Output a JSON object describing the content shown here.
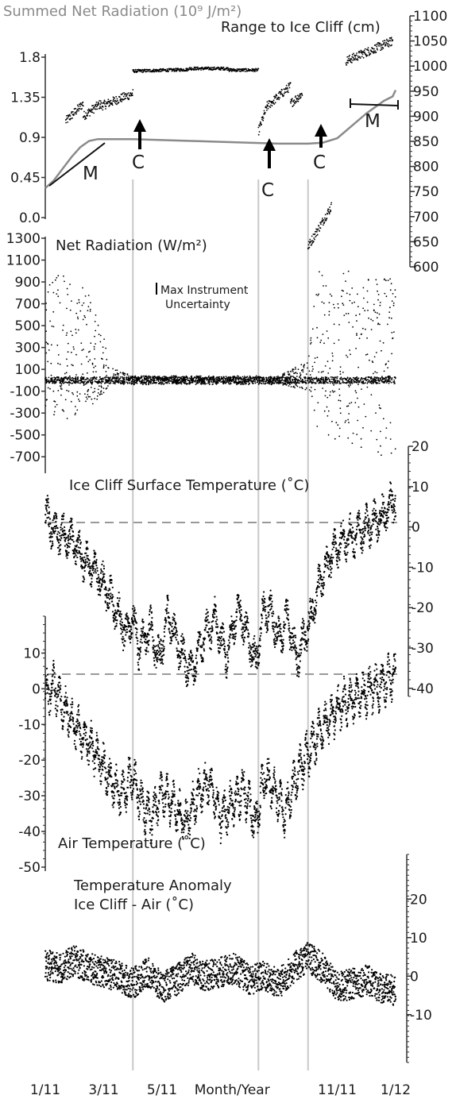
{
  "chart_data": [
    {
      "type": "line",
      "title": "Summed Net Radiation (10⁹ J/m²)",
      "series_color": "#8a8a8a",
      "y_ticks": [
        "1.8",
        "1.35",
        "0.9",
        "0.45",
        "0.0"
      ],
      "ylim": [
        0,
        1.8
      ],
      "series": [
        {
          "values": [
            [
              0.0,
              0.33
            ],
            [
              0.3,
              0.42
            ],
            [
              0.6,
              0.55
            ],
            [
              0.9,
              0.68
            ],
            [
              1.2,
              0.79
            ],
            [
              1.5,
              0.86
            ],
            [
              1.8,
              0.88
            ],
            [
              3,
              0.88
            ],
            [
              4,
              0.87
            ],
            [
              5,
              0.86
            ],
            [
              6,
              0.85
            ],
            [
              7,
              0.84
            ],
            [
              8,
              0.83
            ],
            [
              9,
              0.83
            ],
            [
              9.5,
              0.84
            ],
            [
              10,
              0.89
            ],
            [
              10.5,
              1.03
            ],
            [
              11,
              1.17
            ],
            [
              11.3,
              1.24
            ],
            [
              11.6,
              1.31
            ],
            [
              11.9,
              1.36
            ],
            [
              12.0,
              1.43
            ]
          ]
        }
      ],
      "annotations": [
        {
          "text": "M",
          "position": "lower-left"
        },
        {
          "text": "C",
          "x": 3.0
        },
        {
          "text": "C",
          "x": 7.3
        },
        {
          "text": "C",
          "x": 9.0
        },
        {
          "text": "M",
          "position": "upper-right"
        }
      ]
    },
    {
      "type": "scatter",
      "title": "Range to Ice Cliff (cm)",
      "y_ticks": [
        "1100",
        "1050",
        "1000",
        "950",
        "900",
        "850",
        "800",
        "750",
        "700",
        "650",
        "600"
      ],
      "ylim": [
        600,
        1100
      ],
      "segments": [
        {
          "x": [
            0.7,
            1.3
          ],
          "y": [
            890,
            925
          ]
        },
        {
          "x": [
            1.3,
            1.9
          ],
          "y": [
            900,
            925
          ]
        },
        {
          "x": [
            1.9,
            3.0
          ],
          "y": [
            920,
            945
          ]
        },
        {
          "x": [
            3.0,
            4.9
          ],
          "y": [
            990,
            993
          ]
        },
        {
          "x": [
            4.9,
            6.3
          ],
          "y": [
            995,
            995
          ]
        },
        {
          "x": [
            6.3,
            7.3
          ],
          "y": [
            992,
            992
          ]
        },
        {
          "x": [
            7.3,
            7.6
          ],
          "y": [
            870,
            920
          ]
        },
        {
          "x": [
            7.6,
            8.4
          ],
          "y": [
            920,
            960
          ]
        },
        {
          "x": [
            8.4,
            8.8
          ],
          "y": [
            925,
            945
          ]
        },
        {
          "x": [
            9.0,
            9.8
          ],
          "y": [
            640,
            720
          ]
        },
        {
          "x": [
            10.3,
            11.9
          ],
          "y": [
            1010,
            1050
          ]
        }
      ]
    },
    {
      "type": "scatter",
      "title": "Net Radiation (W/m²)",
      "annotation": "Max Instrument Uncertainty",
      "y_ticks": [
        "1300",
        "1100",
        "900",
        "700",
        "500",
        "300",
        "100",
        "-100",
        "-300",
        "-500",
        "-700"
      ],
      "ylim": [
        -800,
        1300
      ],
      "envelope": [
        [
          0,
          950,
          -350
        ],
        [
          0.5,
          1000,
          -380
        ],
        [
          1,
          950,
          -320
        ],
        [
          1.5,
          800,
          -250
        ],
        [
          2,
          400,
          -120
        ],
        [
          2.2,
          120,
          -40
        ],
        [
          3,
          40,
          -40
        ],
        [
          8,
          40,
          -40
        ],
        [
          9,
          180,
          -90
        ],
        [
          9.3,
          1000,
          -450
        ],
        [
          10,
          1000,
          -550
        ],
        [
          10.6,
          1000,
          -600
        ],
        [
          11,
          950,
          -650
        ],
        [
          12,
          950,
          -780
        ]
      ]
    },
    {
      "type": "line",
      "title": "Ice Cliff Surface Temperature (˚C)",
      "y_ticks": [
        "20",
        "10",
        "0",
        "-10",
        "-20",
        "-30",
        "-40"
      ],
      "ylim": [
        -42,
        20
      ],
      "zero_line": 0,
      "values": [
        [
          0,
          3
        ],
        [
          0.3,
          -1
        ],
        [
          0.6,
          -2
        ],
        [
          1,
          -4
        ],
        [
          1.3,
          -8
        ],
        [
          1.6,
          -10
        ],
        [
          2,
          -14
        ],
        [
          2.4,
          -20
        ],
        [
          2.8,
          -27
        ],
        [
          3,
          -22
        ],
        [
          3.2,
          -30
        ],
        [
          3.6,
          -25
        ],
        [
          3.9,
          -33
        ],
        [
          4.2,
          -22
        ],
        [
          4.6,
          -30
        ],
        [
          5,
          -36
        ],
        [
          5.4,
          -28
        ],
        [
          5.8,
          -23
        ],
        [
          6.2,
          -32
        ],
        [
          6.6,
          -20
        ],
        [
          7,
          -28
        ],
        [
          7.2,
          -34
        ],
        [
          7.5,
          -20
        ],
        [
          7.8,
          -22
        ],
        [
          8,
          -28
        ],
        [
          8.3,
          -22
        ],
        [
          8.6,
          -33
        ],
        [
          9,
          -25
        ],
        [
          9.4,
          -14
        ],
        [
          9.8,
          -7
        ],
        [
          10.2,
          -3
        ],
        [
          10.6,
          -2
        ],
        [
          11,
          0
        ],
        [
          11.5,
          2
        ],
        [
          12,
          7
        ]
      ]
    },
    {
      "type": "line",
      "title": "Air Temperature (˚C)",
      "y_ticks": [
        "10",
        "0",
        "-10",
        "-20",
        "-30",
        "-40",
        "-50"
      ],
      "ylim": [
        -50,
        15
      ],
      "zero_line": 0,
      "values": [
        [
          0,
          -2
        ],
        [
          0.3,
          1
        ],
        [
          0.6,
          -5
        ],
        [
          1,
          -10
        ],
        [
          1.4,
          -14
        ],
        [
          1.8,
          -19
        ],
        [
          2.2,
          -25
        ],
        [
          2.6,
          -30
        ],
        [
          3,
          -24
        ],
        [
          3.3,
          -32
        ],
        [
          3.6,
          -37
        ],
        [
          4,
          -28
        ],
        [
          4.4,
          -33
        ],
        [
          4.8,
          -38
        ],
        [
          5.2,
          -30
        ],
        [
          5.6,
          -26
        ],
        [
          6,
          -36
        ],
        [
          6.4,
          -32
        ],
        [
          6.8,
          -28
        ],
        [
          7.2,
          -38
        ],
        [
          7.5,
          -25
        ],
        [
          7.9,
          -29
        ],
        [
          8.2,
          -35
        ],
        [
          8.6,
          -25
        ],
        [
          9,
          -18
        ],
        [
          9.4,
          -12
        ],
        [
          9.8,
          -8
        ],
        [
          10.2,
          -4
        ],
        [
          10.6,
          -3
        ],
        [
          11,
          -1
        ],
        [
          11.5,
          1
        ],
        [
          12,
          4
        ]
      ]
    },
    {
      "type": "scatter",
      "title": "Temperature Anomaly Ice Cliff - Air (˚C)",
      "title_lines": [
        "Temperature Anomaly",
        "Ice Cliff - Air (˚C)"
      ],
      "y_ticks": [
        "20",
        "10",
        "0",
        "-10"
      ],
      "ylim": [
        -15,
        25
      ],
      "zero_line": 0,
      "values": [
        [
          0,
          3
        ],
        [
          0.5,
          2
        ],
        [
          1,
          4
        ],
        [
          1.5,
          2
        ],
        [
          2,
          1
        ],
        [
          2.5,
          0
        ],
        [
          3,
          -2
        ],
        [
          3.5,
          1
        ],
        [
          4,
          -3
        ],
        [
          4.5,
          -1
        ],
        [
          5,
          2
        ],
        [
          5.5,
          0
        ],
        [
          6,
          1
        ],
        [
          6.5,
          2
        ],
        [
          7,
          -1
        ],
        [
          7.5,
          0
        ],
        [
          8,
          -2
        ],
        [
          8.5,
          2
        ],
        [
          9,
          5
        ],
        [
          9.5,
          2
        ],
        [
          10,
          -3
        ],
        [
          10.5,
          -2
        ],
        [
          11,
          -1
        ],
        [
          11.5,
          -3
        ],
        [
          12,
          -4
        ]
      ]
    }
  ],
  "x_axis": {
    "label": "Month/Year",
    "ticks": [
      {
        "label": "1/11",
        "x": 0
      },
      {
        "label": "3/11",
        "x": 2
      },
      {
        "label": "5/11",
        "x": 4
      },
      {
        "label": "Month/Year",
        "x": 6.4
      },
      {
        "label": "11/11",
        "x": 10
      },
      {
        "label": "1/12",
        "x": 12
      }
    ]
  },
  "event_lines_x": [
    3.0,
    7.3,
    9.0
  ]
}
